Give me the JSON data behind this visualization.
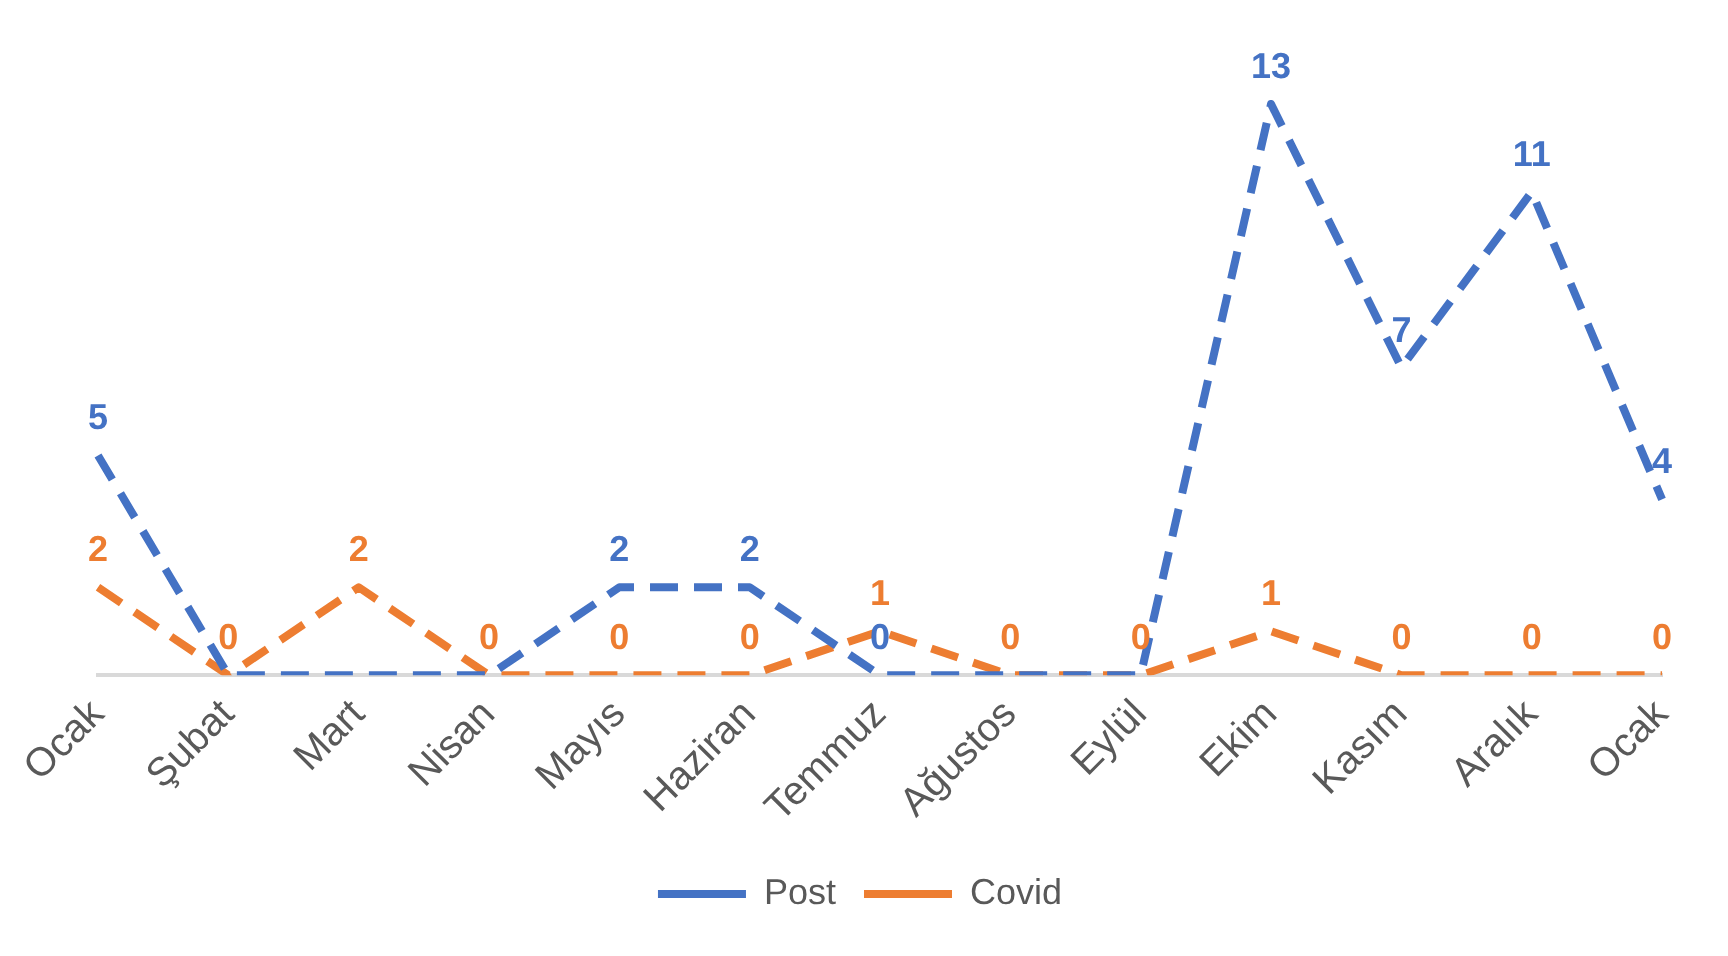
{
  "chart_data": {
    "type": "line",
    "categories": [
      "Ocak",
      "Şubat",
      "Mart",
      "Nisan",
      "Mayıs",
      "Haziran",
      "Temmuz",
      "Ağustos",
      "Eylül",
      "Ekim",
      "Kasım",
      "Aralık",
      "Ocak"
    ],
    "series": [
      {
        "name": "Post",
        "color": "#4472c4",
        "values": [
          5,
          0,
          0,
          0,
          2,
          2,
          0,
          0,
          0,
          13,
          7,
          11,
          4
        ],
        "value_labels": [
          "5",
          null,
          null,
          null,
          "2",
          "2",
          "0",
          null,
          null,
          "13",
          "7",
          "11",
          "4"
        ]
      },
      {
        "name": "Covid",
        "color": "#ed7d31",
        "values": [
          2,
          0,
          2,
          0,
          0,
          0,
          1,
          0,
          0,
          1,
          0,
          0,
          0
        ],
        "value_labels": [
          "2",
          "0",
          "2",
          "0",
          "0",
          "0",
          "1",
          "0",
          "0",
          "1",
          "0",
          "0",
          "0"
        ]
      }
    ],
    "line_style": "dashed",
    "grid": false,
    "legend": "bottom"
  }
}
